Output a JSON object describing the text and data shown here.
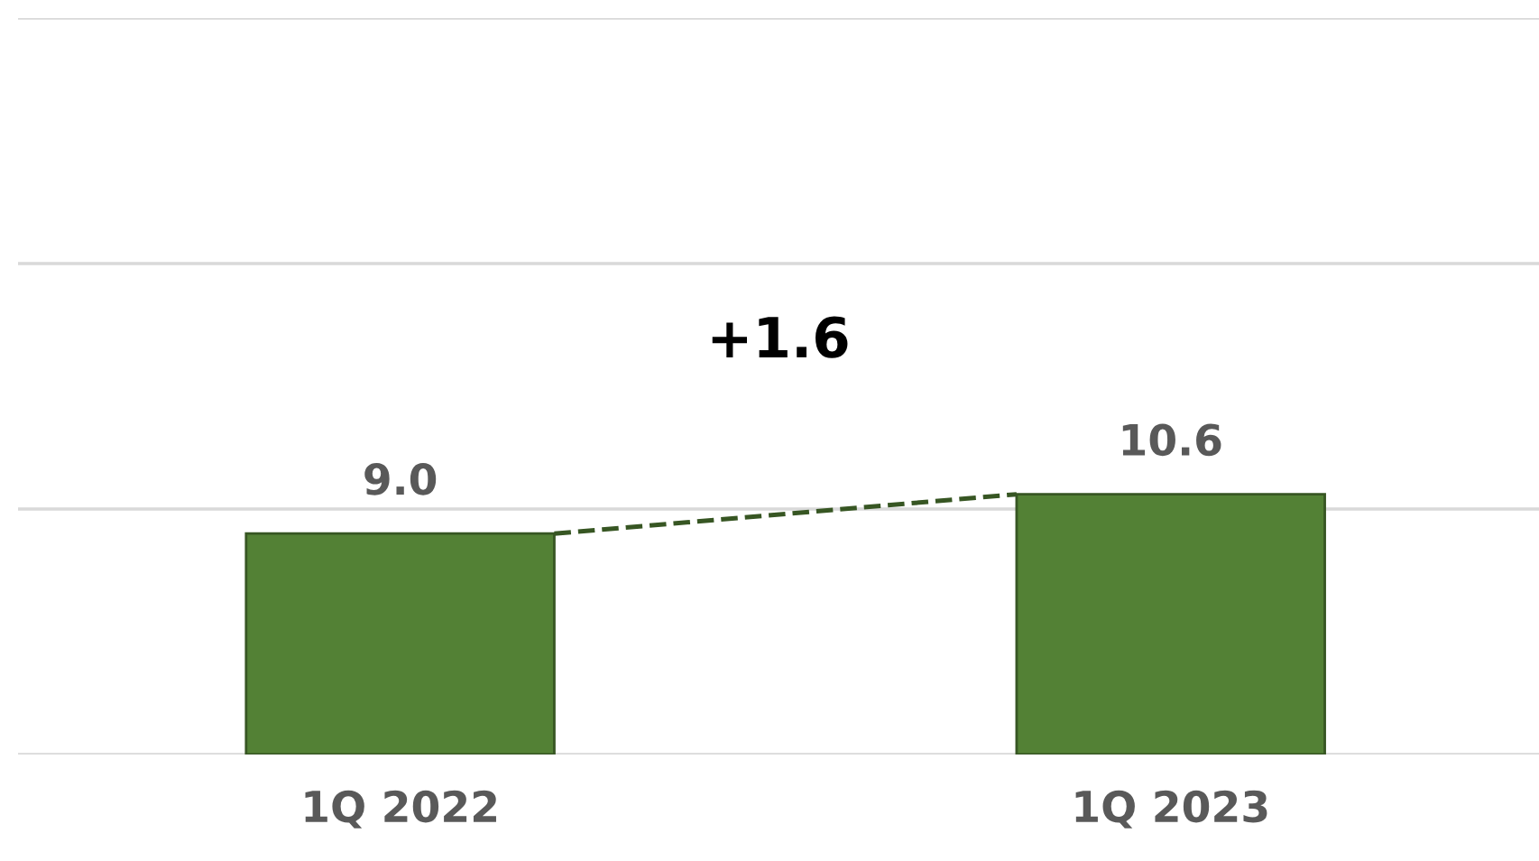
{
  "chart_data": {
    "type": "bar",
    "categories": [
      "1Q 2022",
      "1Q 2023"
    ],
    "series": [
      {
        "color": "#538135",
        "values": [
          9.0,
          10.6
        ],
        "value_labels": [
          "9.0",
          "10.6"
        ]
      }
    ],
    "ylim": [
      0,
      30
    ],
    "yticks": [
      {
        "value": 0,
        "label": null
      },
      {
        "value": 10,
        "label": null
      },
      {
        "value": 20,
        "label": null
      },
      {
        "value": 30,
        "label": null
      }
    ],
    "grid": "y",
    "tick_labels": "x",
    "annotations": [
      "+1.6"
    ]
  }
}
